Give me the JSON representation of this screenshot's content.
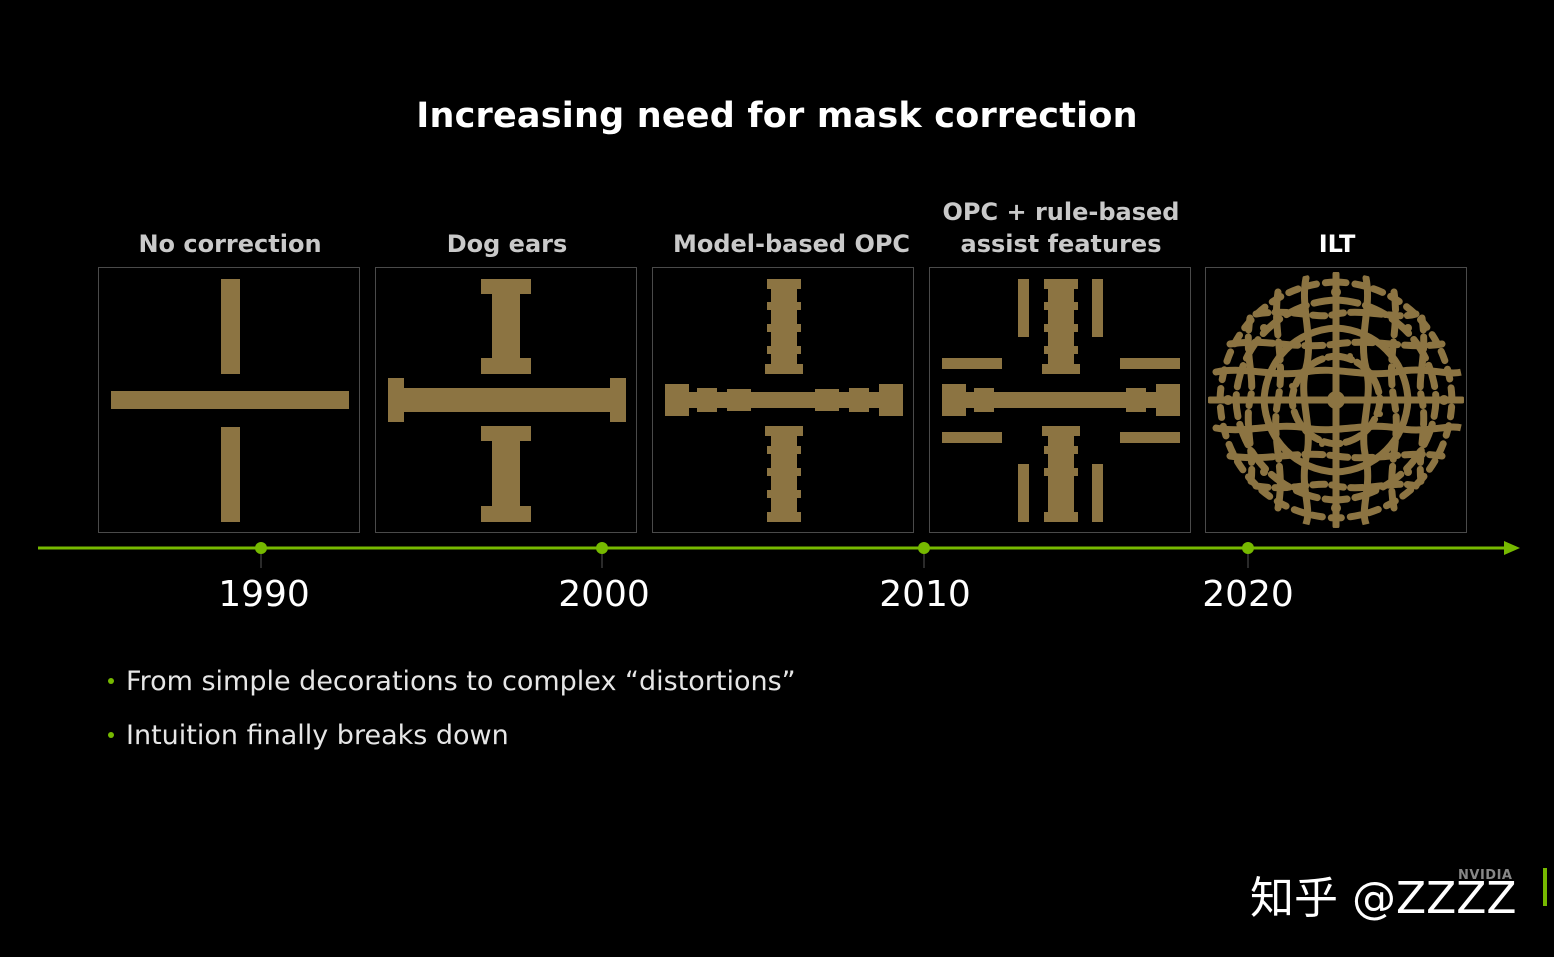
{
  "slide": {
    "title": "Increasing need for mask correction",
    "accent_color": "#76b900",
    "pattern_color": "#8c7442"
  },
  "panels": [
    {
      "label": "No correction",
      "icon": "cross-pattern-icon"
    },
    {
      "label": "Dog ears",
      "icon": "dog-ear-cross-icon"
    },
    {
      "label": "Model-based OPC",
      "icon": "opc-cross-icon"
    },
    {
      "label_line1": "OPC + rule-based",
      "label_line2": "assist features",
      "icon": "assist-features-cross-icon"
    },
    {
      "label": "ILT",
      "icon": "ilt-curvilinear-icon"
    }
  ],
  "timeline": {
    "years": [
      "1990",
      "2000",
      "2010",
      "2020"
    ]
  },
  "bullets": [
    "From simple decorations to complex “distortions”",
    "Intuition finally breaks down"
  ],
  "watermark": "知乎 @ZZZZ",
  "logo_text": "NVIDIA"
}
